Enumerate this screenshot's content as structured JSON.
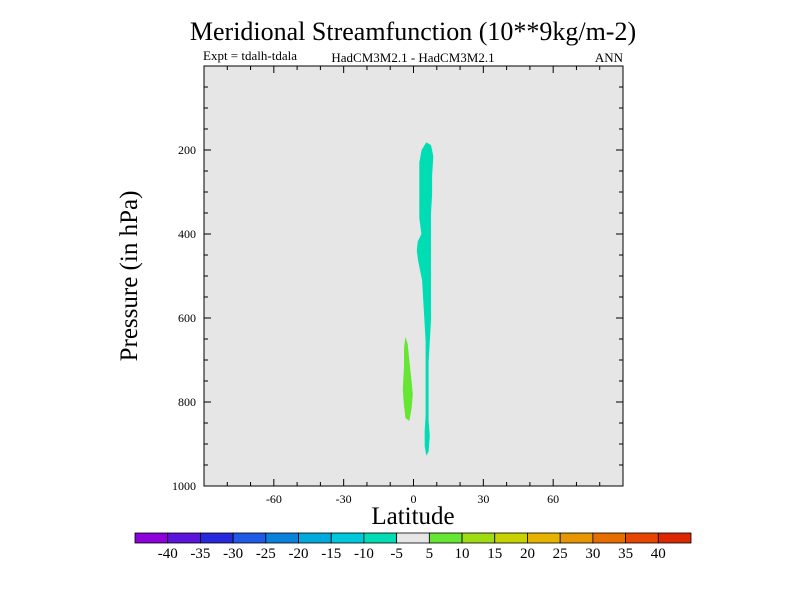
{
  "chart_data": {
    "type": "contour",
    "title": "Meridional Streamfunction (10**9kg/m-2)",
    "expt_label": "Expt = tdalh-tdala",
    "model_label": "HadCM3M2.1 - HadCM3M2.1",
    "season": "ANN",
    "xlabel": "Latitude",
    "ylabel": "Pressure (in hPa)",
    "xlim": [
      -90,
      90
    ],
    "ylim": [
      1000,
      0
    ],
    "x_ticks": [
      -60,
      -30,
      0,
      30,
      60
    ],
    "y_ticks": [
      200,
      400,
      600,
      800,
      1000
    ],
    "background_color": "#e6e6e6",
    "regions": [
      {
        "name": "negative-cell",
        "level_range": [
          -10,
          -5
        ],
        "color": "#00dcb4",
        "outline": [
          [
            5.5,
            182
          ],
          [
            7.5,
            188
          ],
          [
            8.5,
            215
          ],
          [
            8,
            262
          ],
          [
            8,
            305
          ],
          [
            7.5,
            352
          ],
          [
            7.5,
            400
          ],
          [
            7.5,
            452
          ],
          [
            7.5,
            505
          ],
          [
            7.5,
            552
          ],
          [
            7.5,
            605
          ],
          [
            7,
            655
          ],
          [
            6.5,
            705
          ],
          [
            6.5,
            752
          ],
          [
            6.5,
            802
          ],
          [
            6.5,
            845
          ],
          [
            7,
            880
          ],
          [
            6.5,
            918
          ],
          [
            5.5,
            928
          ],
          [
            4.8,
            905
          ],
          [
            4.8,
            868
          ],
          [
            5.2,
            832
          ],
          [
            5.2,
            800
          ],
          [
            5.2,
            752
          ],
          [
            5.2,
            705
          ],
          [
            5.2,
            655
          ],
          [
            4.7,
            605
          ],
          [
            4.2,
            560
          ],
          [
            3.7,
            510
          ],
          [
            2,
            465
          ],
          [
            1.4,
            440
          ],
          [
            1.8,
            418
          ],
          [
            3.4,
            400
          ],
          [
            2.5,
            362
          ],
          [
            2.5,
            320
          ],
          [
            2.5,
            275
          ],
          [
            2.5,
            230
          ],
          [
            3.5,
            200
          ]
        ]
      },
      {
        "name": "positive-cell",
        "level_range": [
          5,
          10
        ],
        "color": "#64e632",
        "outline": [
          [
            -3.5,
            645
          ],
          [
            -2.5,
            662
          ],
          [
            -1.8,
            700
          ],
          [
            -0.8,
            752
          ],
          [
            -0.3,
            782
          ],
          [
            -0.8,
            815
          ],
          [
            -1.8,
            845
          ],
          [
            -3.5,
            838
          ],
          [
            -4.2,
            802
          ],
          [
            -4.6,
            770
          ],
          [
            -4.1,
            715
          ],
          [
            -4.1,
            672
          ]
        ]
      }
    ],
    "colorbar": {
      "levels": [
        -40,
        -35,
        -30,
        -25,
        -20,
        -15,
        -10,
        -5,
        5,
        10,
        15,
        20,
        25,
        30,
        35,
        40
      ],
      "colors": [
        "#8c00dc",
        "#5a14dc",
        "#2828dc",
        "#1e5ae6",
        "#0a82dc",
        "#00aadc",
        "#00c8dc",
        "#00dcb4",
        "#e6e6e6",
        "#64e632",
        "#a0dc14",
        "#c8d200",
        "#e6b400",
        "#e69600",
        "#e66e00",
        "#e64600",
        "#dc2800"
      ]
    }
  }
}
